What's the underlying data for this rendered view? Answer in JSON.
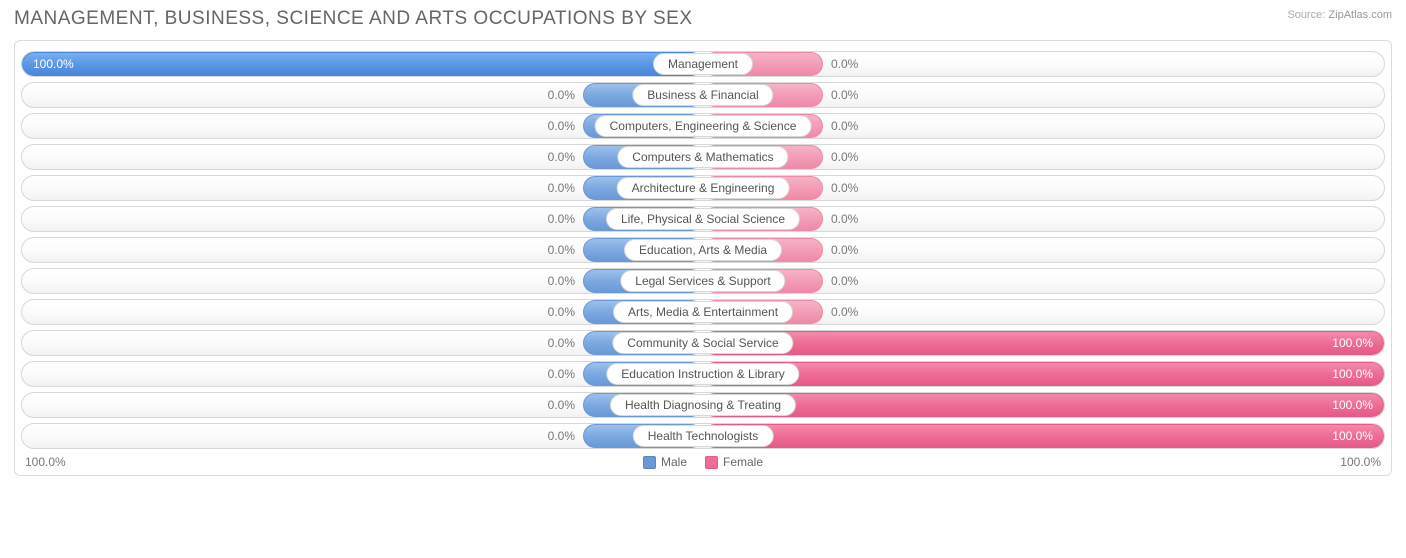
{
  "title": "MANAGEMENT, BUSINESS, SCIENCE AND ARTS OCCUPATIONS BY SEX",
  "source": {
    "label": "Source:",
    "value": "ZipAtlas.com"
  },
  "axis": {
    "left": "100.0%",
    "right": "100.0%"
  },
  "legend": {
    "male": "Male",
    "female": "Female"
  },
  "chart": {
    "type": "diverging-bar",
    "male_color": "#6a99d6",
    "male_full_color": "#4a86d8",
    "female_color": "#ef8aa7",
    "female_full_color": "#e75a87",
    "background_color": "#ffffff",
    "border_color": "#d8d8d8",
    "text_color": "#666666",
    "min_bar_pct": 17,
    "rows": [
      {
        "label": "Management",
        "male": 100.0,
        "female": 0.0
      },
      {
        "label": "Business & Financial",
        "male": 0.0,
        "female": 0.0
      },
      {
        "label": "Computers, Engineering & Science",
        "male": 0.0,
        "female": 0.0
      },
      {
        "label": "Computers & Mathematics",
        "male": 0.0,
        "female": 0.0
      },
      {
        "label": "Architecture & Engineering",
        "male": 0.0,
        "female": 0.0
      },
      {
        "label": "Life, Physical & Social Science",
        "male": 0.0,
        "female": 0.0
      },
      {
        "label": "Education, Arts & Media",
        "male": 0.0,
        "female": 0.0
      },
      {
        "label": "Legal Services & Support",
        "male": 0.0,
        "female": 0.0
      },
      {
        "label": "Arts, Media & Entertainment",
        "male": 0.0,
        "female": 0.0
      },
      {
        "label": "Community & Social Service",
        "male": 0.0,
        "female": 100.0
      },
      {
        "label": "Education Instruction & Library",
        "male": 0.0,
        "female": 100.0
      },
      {
        "label": "Health Diagnosing & Treating",
        "male": 0.0,
        "female": 100.0
      },
      {
        "label": "Health Technologists",
        "male": 0.0,
        "female": 100.0
      }
    ]
  }
}
